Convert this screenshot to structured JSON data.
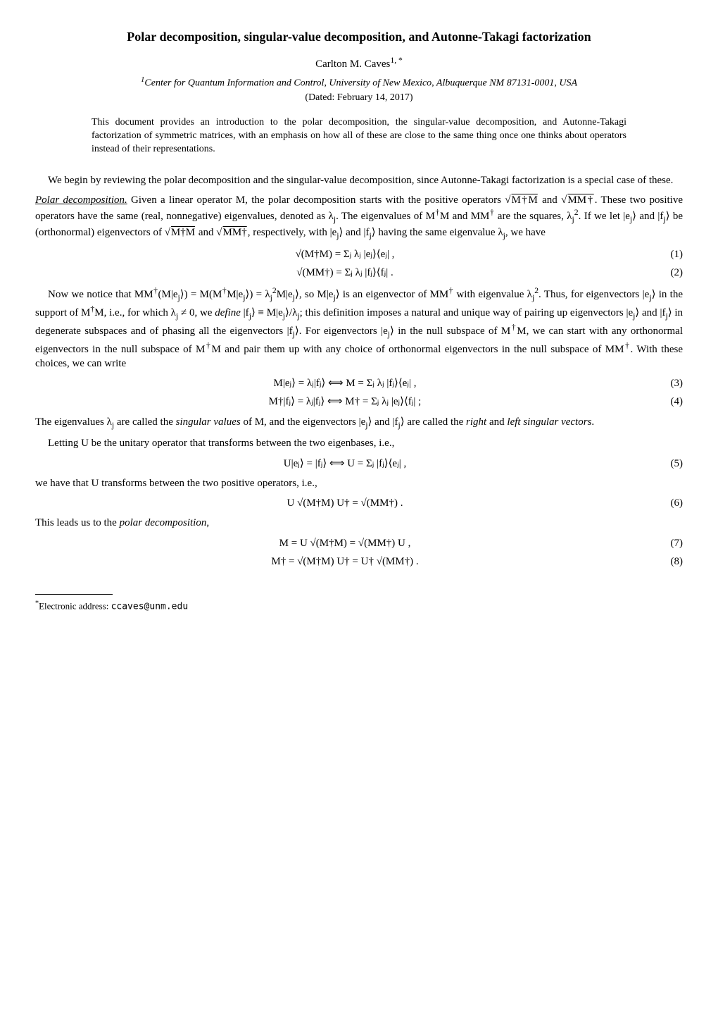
{
  "title": "Polar decomposition, singular-value decomposition, and Autonne-Takagi factorization",
  "author": "Carlton  M.  Caves",
  "author_sup": "1, *",
  "affiliation_sup": "1",
  "affiliation": "Center for Quantum Information and Control, University of New Mexico, Albuquerque NM 87131-0001, USA",
  "dated": "(Dated: February 14, 2017)",
  "abstract": "This document provides an introduction to the polar decomposition, the singular-value decomposition, and Autonne-Takagi factorization of symmetric matrices, with an emphasis on how all of these are close to the same thing once one thinks about operators instead of their representations.",
  "para1": "We begin by reviewing the polar decomposition and the singular-value decomposition, since Autonne-Takagi factorization is a special case of these.",
  "polar_lead": "Polar decomposition.",
  "para2a": " Given a linear operator M, the polar decomposition starts with the positive operators ",
  "para2b": " and ",
  "para2c": ". These two positive operators have the same (real, nonnegative) eigenvalues, denoted as λ",
  "para2c2": ". The eigenvalues of M",
  "para2d": "M and MM",
  "para2e": " are the squares, λ",
  "para2f": ". If we let |e",
  "para2g": "⟩ and |f",
  "para2h": "⟩ be (orthonormal) eigenvectors of ",
  "para2i": " and ",
  "para2j": ", respectively, with |e",
  "para2k": "⟩ and |f",
  "para2l": "⟩ having the same eigenvalue λ",
  "para2m": ", we have",
  "eq1": "√(M†M) = Σⱼ λⱼ |eⱼ⟩⟨eⱼ| ,",
  "eq1num": "(1)",
  "eq2": "√(MM†) = Σⱼ λⱼ |fⱼ⟩⟨fⱼ| .",
  "eq2num": "(2)",
  "para3a": "Now we notice that MM",
  "para3b": "(M|e",
  "para3c": "⟩) = M(M",
  "para3d": "M|e",
  "para3e": "⟩) = λ",
  "para3f": "M|e",
  "para3g": "⟩, so M|e",
  "para3h": "⟩ is an eigenvector of MM",
  "para3i": " with eigenvalue λ",
  "para3j": ". Thus, for eigenvectors |e",
  "para3k": "⟩ in the support of M",
  "para3l": "M, i.e., for which λ",
  "para3m": " ≠ 0, we ",
  "define": "define",
  "para3n": " |f",
  "para3o": "⟩ ≡ M|e",
  "para3p": "⟩/λ",
  "para3q": "; this definition imposes a natural and unique way of pairing up eigenvectors |e",
  "para3r": "⟩ and |f",
  "para3s": "⟩ in degenerate subspaces and of phasing all the eigenvectors |f",
  "para3t": "⟩. For eigenvectors |e",
  "para3u": "⟩ in the null subspace of M",
  "para3v": "M, we can start with any orthonormal eigenvectors in the null subspace of M",
  "para3w": "M and pair them up with any choice of orthonormal eigenvectors in the null subspace of MM",
  "para3x": ". With these choices, we can write",
  "eq3": "M|eⱼ⟩ = λⱼ|fⱼ⟩      ⟺      M = Σⱼ λⱼ |fⱼ⟩⟨eⱼ| ,",
  "eq3num": "(3)",
  "eq4": "M†|fⱼ⟩ = λⱼ|fⱼ⟩      ⟺      M† = Σⱼ λⱼ |eⱼ⟩⟨fⱼ| ;",
  "eq4num": "(4)",
  "para4a": "The eigenvalues λ",
  "para4b": " are called the ",
  "singular_values": "singular values",
  "para4c": " of M, and the eigenvectors |e",
  "para4d": "⟩ and |f",
  "para4e": "⟩ are called the ",
  "right": "right",
  "para4f": " and ",
  "left": "left",
  "para4g": " ",
  "singular_vectors": "singular vectors",
  "para4h": ".",
  "para5": "Letting U be the unitary operator that transforms between the two eigenbases, i.e.,",
  "eq5": "U|eⱼ⟩ = |fⱼ⟩      ⟺      U = Σⱼ |fⱼ⟩⟨eⱼ| ,",
  "eq5num": "(5)",
  "para6": "we have that U transforms between the two positive operators, i.e.,",
  "eq6": "U √(M†M) U† = √(MM†) .",
  "eq6num": "(6)",
  "para7a": "This leads us to the ",
  "polar_decomp": "polar decomposition",
  "para7b": ",",
  "eq7": "M = U √(M†M) = √(MM†) U ,",
  "eq7num": "(7)",
  "eq8": "M† = √(M†M) U† = U† √(MM†) .",
  "eq8num": "(8)",
  "footnote_label": "*",
  "footnote_text": "Electronic address: ",
  "footnote_email": "ccaves@unm.edu",
  "sqrtMdM": "M†M",
  "sqrtMMd": "MM†",
  "dagger": "†",
  "sub_j": "j",
  "sup2": "2",
  "sub_j2": "j"
}
